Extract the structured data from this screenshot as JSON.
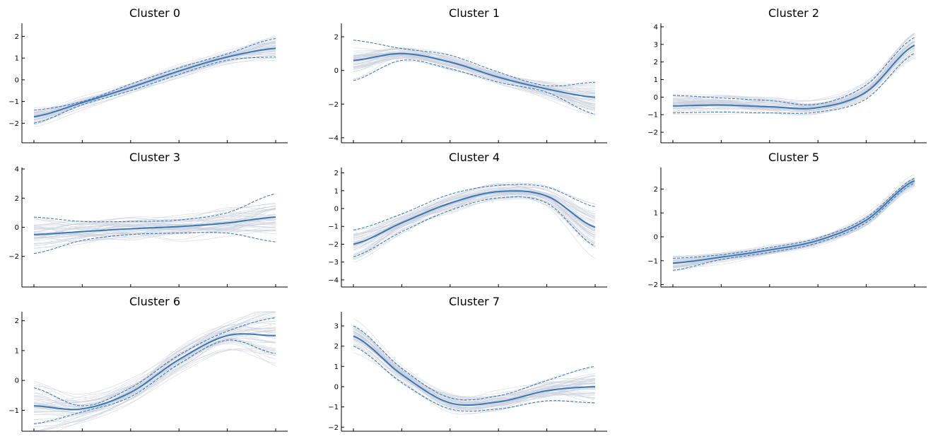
{
  "chart_data": [
    {
      "type": "line",
      "title": "Cluster 0",
      "ylim": [
        -2.9,
        2.6
      ],
      "yticks": [
        -2,
        -1,
        0,
        1,
        2
      ],
      "x": [
        0,
        1,
        2,
        3,
        4,
        5
      ],
      "mean": [
        -1.7,
        -1.05,
        -0.35,
        0.4,
        1.05,
        1.45
      ],
      "lower": [
        -2.0,
        -1.15,
        -0.5,
        0.25,
        0.9,
        1.05
      ],
      "upper": [
        -1.4,
        -1.0,
        -0.2,
        0.55,
        1.2,
        1.9
      ],
      "spread": [
        0.55,
        0.25,
        0.25,
        0.35,
        0.3,
        0.6
      ]
    },
    {
      "type": "line",
      "title": "Cluster 1",
      "ylim": [
        -4.3,
        2.8
      ],
      "yticks": [
        -4,
        -2,
        0,
        2
      ],
      "x": [
        0,
        1,
        2,
        3,
        4,
        5
      ],
      "mean": [
        0.6,
        1.0,
        0.5,
        -0.4,
        -1.1,
        -1.6
      ],
      "lower": [
        -0.6,
        0.6,
        0.1,
        -0.7,
        -1.3,
        -2.6
      ],
      "upper": [
        1.8,
        1.3,
        0.9,
        -0.1,
        -0.9,
        -0.7
      ],
      "spread": [
        1.2,
        0.5,
        0.5,
        0.5,
        0.6,
        1.3
      ]
    },
    {
      "type": "line",
      "title": "Cluster 2",
      "ylim": [
        -2.6,
        4.2
      ],
      "yticks": [
        -2,
        -1,
        0,
        1,
        2,
        3,
        4
      ],
      "x": [
        0,
        1,
        2,
        3,
        4,
        5
      ],
      "mean": [
        -0.5,
        -0.45,
        -0.55,
        -0.6,
        0.3,
        2.95
      ],
      "lower": [
        -0.9,
        -0.85,
        -0.9,
        -0.85,
        -0.1,
        2.5
      ],
      "upper": [
        0.1,
        -0.05,
        -0.2,
        -0.4,
        0.7,
        3.4
      ],
      "spread": [
        0.8,
        0.6,
        0.6,
        0.5,
        0.6,
        0.9
      ]
    },
    {
      "type": "line",
      "title": "Cluster 3",
      "ylim": [
        -4.1,
        4.1
      ],
      "yticks": [
        -2,
        0,
        2,
        4
      ],
      "x": [
        0,
        1,
        2,
        3,
        4,
        5
      ],
      "mean": [
        -0.5,
        -0.3,
        -0.1,
        0.05,
        0.3,
        0.7
      ],
      "lower": [
        -1.8,
        -0.9,
        -0.5,
        -0.4,
        -0.4,
        -1.0
      ],
      "upper": [
        0.7,
        0.4,
        0.4,
        0.5,
        1.0,
        2.3
      ],
      "spread": [
        1.6,
        1.2,
        1.1,
        1.0,
        1.2,
        1.8
      ]
    },
    {
      "type": "line",
      "title": "Cluster 4",
      "ylim": [
        -4.4,
        2.3
      ],
      "yticks": [
        -4,
        -3,
        -2,
        -1,
        0,
        1,
        2
      ],
      "x": [
        0,
        1,
        2,
        3,
        4,
        5
      ],
      "mean": [
        -2.0,
        -0.8,
        0.3,
        0.95,
        0.7,
        -1.05
      ],
      "lower": [
        -2.7,
        -1.3,
        -0.1,
        0.6,
        0.3,
        -2.1
      ],
      "upper": [
        -1.2,
        -0.3,
        0.8,
        1.3,
        1.2,
        0.1
      ],
      "spread": [
        1.3,
        0.7,
        0.6,
        0.6,
        0.6,
        1.4
      ]
    },
    {
      "type": "line",
      "title": "Cluster 5",
      "ylim": [
        -2.1,
        2.9
      ],
      "yticks": [
        -2,
        -1,
        0,
        1,
        2
      ],
      "x": [
        0,
        1,
        2,
        3,
        4,
        5
      ],
      "mean": [
        -1.1,
        -0.85,
        -0.55,
        -0.15,
        0.7,
        2.35
      ],
      "lower": [
        -1.4,
        -0.95,
        -0.65,
        -0.25,
        0.6,
        2.25
      ],
      "upper": [
        -0.9,
        -0.75,
        -0.45,
        -0.05,
        0.8,
        2.45
      ],
      "spread": [
        0.4,
        0.25,
        0.25,
        0.25,
        0.3,
        0.3
      ]
    },
    {
      "type": "line",
      "title": "Cluster 6",
      "ylim": [
        -1.7,
        2.3
      ],
      "yticks": [
        -1,
        0,
        1,
        2
      ],
      "x": [
        0,
        1,
        2,
        3,
        4,
        5
      ],
      "mean": [
        -0.85,
        -0.95,
        -0.4,
        0.7,
        1.5,
        1.5
      ],
      "lower": [
        -1.45,
        -1.05,
        -0.55,
        0.55,
        1.35,
        0.9
      ],
      "upper": [
        -0.25,
        -0.85,
        -0.25,
        0.85,
        1.65,
        2.1
      ],
      "spread": [
        1.0,
        0.5,
        0.45,
        0.6,
        0.5,
        1.2
      ]
    },
    {
      "type": "line",
      "title": "Cluster 7",
      "ylim": [
        -2.2,
        3.7
      ],
      "yticks": [
        -2,
        -1,
        0,
        1,
        2,
        3
      ],
      "x": [
        0,
        1,
        2,
        3,
        4,
        5
      ],
      "mean": [
        2.5,
        0.6,
        -0.8,
        -0.75,
        -0.2,
        0.0
      ],
      "lower": [
        2.0,
        0.2,
        -1.1,
        -1.1,
        -0.7,
        -0.8
      ],
      "upper": [
        3.0,
        0.9,
        -0.55,
        -0.45,
        0.3,
        1.0
      ],
      "spread": [
        0.8,
        0.5,
        0.6,
        0.6,
        0.8,
        1.3
      ]
    }
  ],
  "colors": {
    "mean": "#3a78b5",
    "band": "#2f74b0",
    "background": "#c9cedd"
  }
}
